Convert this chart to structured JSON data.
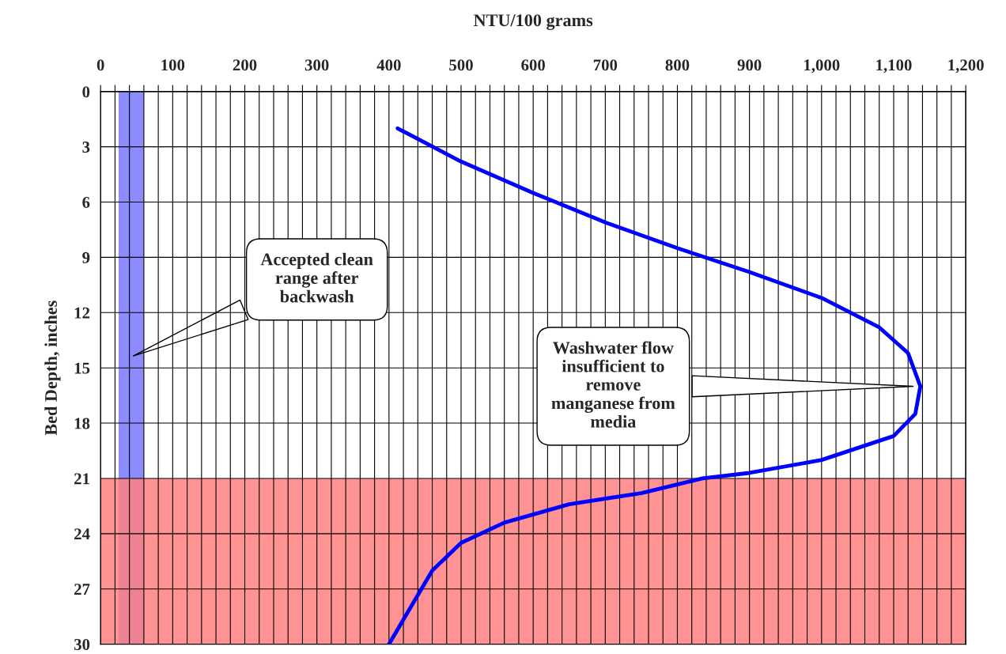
{
  "chart_data": {
    "type": "line",
    "xlabel": "NTU/100 grams",
    "ylabel": "Bed Depth, inches",
    "series": [
      {
        "color": "#0000ff",
        "x": [
          412,
          500,
          600,
          700,
          800,
          900,
          1000,
          1080,
          1120,
          1137,
          1130,
          1100,
          1000,
          900,
          835,
          750,
          650,
          560,
          500,
          460,
          430,
          400
        ],
        "values": [
          2,
          3.8,
          5.5,
          7.1,
          8.5,
          9.8,
          11.2,
          12.8,
          14.2,
          16,
          17.5,
          18.7,
          20,
          20.7,
          21,
          21.8,
          22.4,
          23.4,
          24.5,
          26,
          28,
          30
        ]
      }
    ],
    "xlim": [
      0,
      1200
    ],
    "xticks": [
      0,
      {
        "value": 20,
        "label": null
      },
      {
        "value": 40,
        "label": null
      },
      {
        "value": 60,
        "label": null
      },
      {
        "value": 80,
        "label": null
      },
      100,
      {
        "value": 120,
        "label": null
      },
      {
        "value": 140,
        "label": null
      },
      {
        "value": 160,
        "label": null
      },
      {
        "value": 180,
        "label": null
      },
      200,
      {
        "value": 220,
        "label": null
      },
      {
        "value": 240,
        "label": null
      },
      {
        "value": 260,
        "label": null
      },
      {
        "value": 280,
        "label": null
      },
      300,
      {
        "value": 320,
        "label": null
      },
      {
        "value": 340,
        "label": null
      },
      {
        "value": 360,
        "label": null
      },
      {
        "value": 380,
        "label": null
      },
      400,
      {
        "value": 420,
        "label": null
      },
      {
        "value": 440,
        "label": null
      },
      {
        "value": 460,
        "label": null
      },
      {
        "value": 480,
        "label": null
      },
      500,
      {
        "value": 520,
        "label": null
      },
      {
        "value": 540,
        "label": null
      },
      {
        "value": 560,
        "label": null
      },
      {
        "value": 580,
        "label": null
      },
      600,
      {
        "value": 620,
        "label": null
      },
      {
        "value": 640,
        "label": null
      },
      {
        "value": 660,
        "label": null
      },
      {
        "value": 680,
        "label": null
      },
      700,
      {
        "value": 720,
        "label": null
      },
      {
        "value": 740,
        "label": null
      },
      {
        "value": 760,
        "label": null
      },
      {
        "value": 780,
        "label": null
      },
      800,
      {
        "value": 820,
        "label": null
      },
      {
        "value": 840,
        "label": null
      },
      {
        "value": 860,
        "label": null
      },
      {
        "value": 880,
        "label": null
      },
      900,
      {
        "value": 920,
        "label": null
      },
      {
        "value": 940,
        "label": null
      },
      {
        "value": 960,
        "label": null
      },
      {
        "value": 980,
        "label": null
      },
      {
        "value": 1000,
        "label": "1,000"
      },
      {
        "value": 1020,
        "label": null
      },
      {
        "value": 1040,
        "label": null
      },
      {
        "value": 1060,
        "label": null
      },
      {
        "value": 1080,
        "label": null
      },
      {
        "value": 1100,
        "label": "1,100"
      },
      {
        "value": 1120,
        "label": null
      },
      {
        "value": 1140,
        "label": null
      },
      {
        "value": 1160,
        "label": null
      },
      {
        "value": 1180,
        "label": null
      },
      {
        "value": 1200,
        "label": "1,200"
      }
    ],
    "ylim": [
      30,
      0
    ],
    "yticks": [
      0,
      3,
      6,
      9,
      12,
      15,
      18,
      21,
      24,
      27,
      30
    ],
    "grid": true,
    "bands": [
      {
        "axis": "x",
        "from": 25,
        "to": 60,
        "color": "#7f7fff"
      },
      {
        "axis": "y",
        "from": 21,
        "to": 30,
        "color": "#ff8080"
      }
    ],
    "annotations": [
      "Accepted clean\nrange after\nbackwash",
      {
        "text": "Washwater flow\ninsufficient to\nremove\nmanganese from\nmedia",
        "x": 1130,
        "y": 16
      }
    ]
  }
}
